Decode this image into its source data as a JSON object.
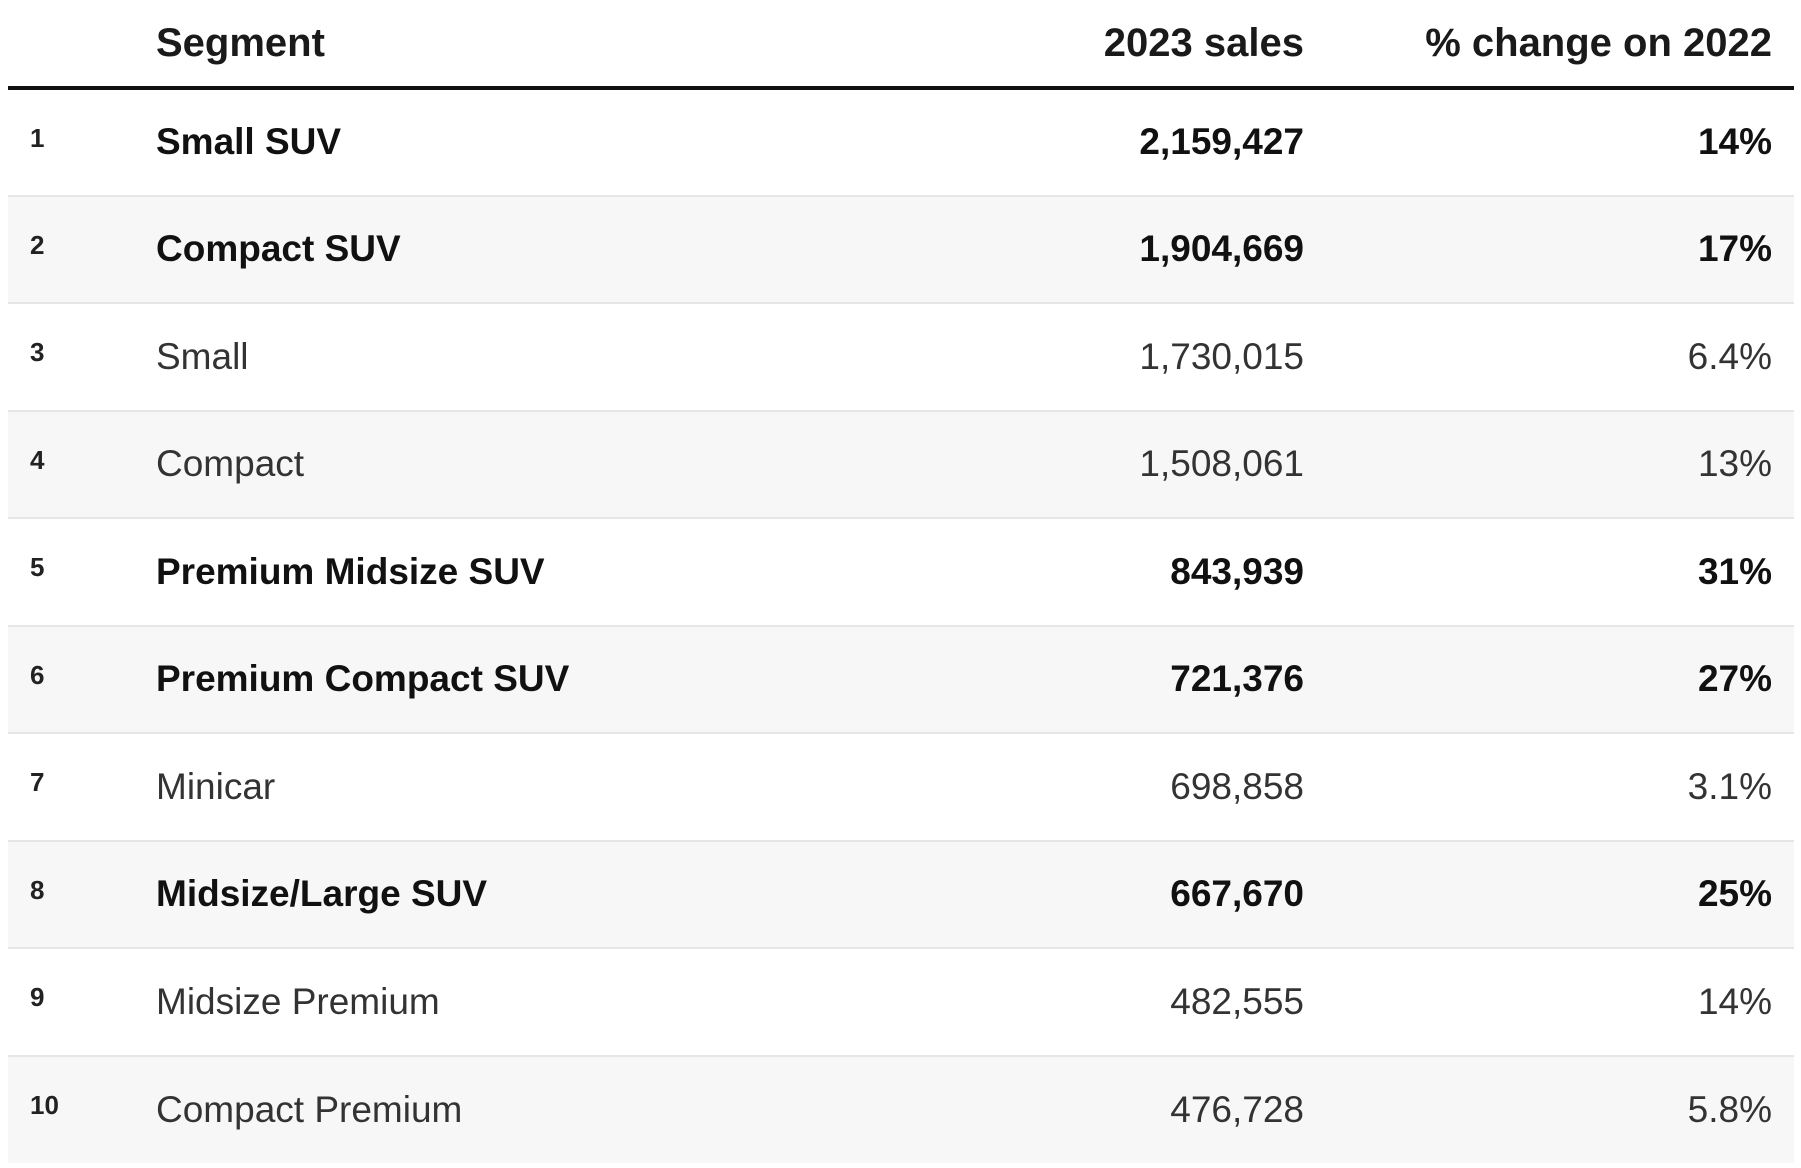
{
  "chart_data": {
    "type": "table",
    "columns": [
      "",
      "Segment",
      "2023 sales",
      "% change on 2022"
    ],
    "rows": [
      {
        "rank": "1",
        "segment": "Small SUV",
        "sales": "2,159,427",
        "change": "14%",
        "highlight": true
      },
      {
        "rank": "2",
        "segment": "Compact SUV",
        "sales": "1,904,669",
        "change": "17%",
        "highlight": true
      },
      {
        "rank": "3",
        "segment": "Small",
        "sales": "1,730,015",
        "change": "6.4%",
        "highlight": false
      },
      {
        "rank": "4",
        "segment": "Compact",
        "sales": "1,508,061",
        "change": "13%",
        "highlight": false
      },
      {
        "rank": "5",
        "segment": "Premium Midsize SUV",
        "sales": "843,939",
        "change": "31%",
        "highlight": true
      },
      {
        "rank": "6",
        "segment": "Premium Compact SUV",
        "sales": "721,376",
        "change": "27%",
        "highlight": true
      },
      {
        "rank": "7",
        "segment": "Minicar",
        "sales": "698,858",
        "change": "3.1%",
        "highlight": false
      },
      {
        "rank": "8",
        "segment": "Midsize/Large SUV",
        "sales": "667,670",
        "change": "25%",
        "highlight": true
      },
      {
        "rank": "9",
        "segment": "Midsize Premium",
        "sales": "482,555",
        "change": "14%",
        "highlight": false
      },
      {
        "rank": "10",
        "segment": "Compact Premium",
        "sales": "476,728",
        "change": "5.8%",
        "highlight": false
      }
    ]
  }
}
